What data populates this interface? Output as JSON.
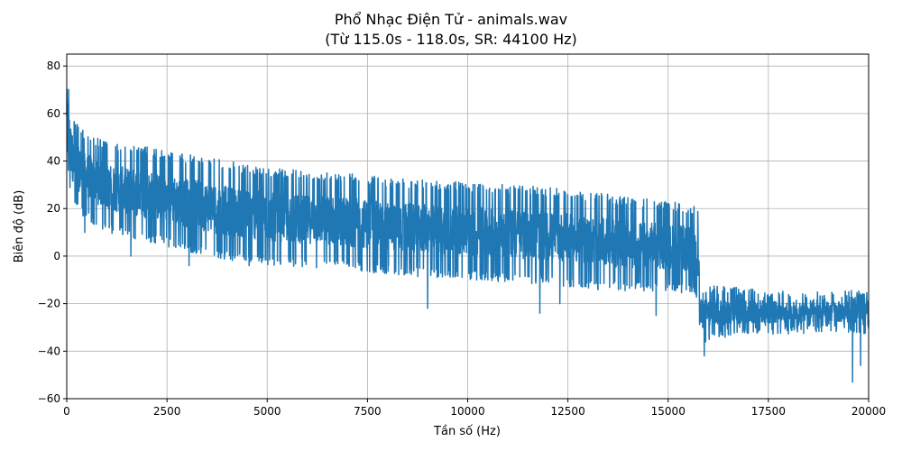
{
  "chart_data": {
    "type": "line",
    "title": "Phổ Nhạc Điện Tử - animals.wav",
    "subtitle": "(Từ 115.0s - 118.0s, SR: 44100 Hz)",
    "xlabel": "Tần số (Hz)",
    "ylabel": "Biên độ (dB)",
    "xlim": [
      0,
      20000
    ],
    "ylim": [
      -60,
      85
    ],
    "x_ticks": [
      "0",
      "2500",
      "5000",
      "7500",
      "10000",
      "12500",
      "15000",
      "17500",
      "20000"
    ],
    "y_ticks": [
      "−60",
      "−40",
      "−20",
      "0",
      "20",
      "40",
      "60",
      "80"
    ],
    "grid": true,
    "series": [
      {
        "color": "#1f77b4",
        "envelope": {
          "x": [
            0,
            50,
            150,
            300,
            500,
            800,
            1000,
            1500,
            2000,
            2500,
            3000,
            4000,
            5000,
            6000,
            7000,
            7500,
            8000,
            9000,
            10000,
            11000,
            12000,
            12500,
            13000,
            14000,
            15000,
            15500,
            15750,
            15800,
            16000,
            17000,
            18000,
            19000,
            20000
          ],
          "upper": [
            80,
            72,
            60,
            55,
            52,
            50,
            48,
            47,
            46,
            44,
            43,
            40,
            37,
            36,
            35,
            34,
            33,
            32,
            31,
            30,
            29,
            28,
            27,
            25,
            23,
            22,
            21,
            -12,
            -12,
            -13,
            -15,
            -15,
            -14
          ],
          "lower": [
            45,
            30,
            22,
            18,
            15,
            12,
            10,
            8,
            6,
            4,
            2,
            -2,
            -4,
            -5,
            -6,
            -7,
            -8,
            -9,
            -10,
            -11,
            -12,
            -13,
            -14,
            -15,
            -15,
            -16,
            -18,
            -37,
            -36,
            -33,
            -33,
            -32,
            -33
          ]
        },
        "spikes_down": [
          [
            450,
            10
          ],
          [
            1600,
            0
          ],
          [
            3050,
            -4
          ],
          [
            4550,
            -4
          ],
          [
            9000,
            -22
          ],
          [
            11800,
            -24
          ],
          [
            12300,
            -20
          ],
          [
            14700,
            -25
          ],
          [
            15900,
            -42
          ],
          [
            19600,
            -53
          ],
          [
            19800,
            -46
          ]
        ]
      }
    ]
  }
}
